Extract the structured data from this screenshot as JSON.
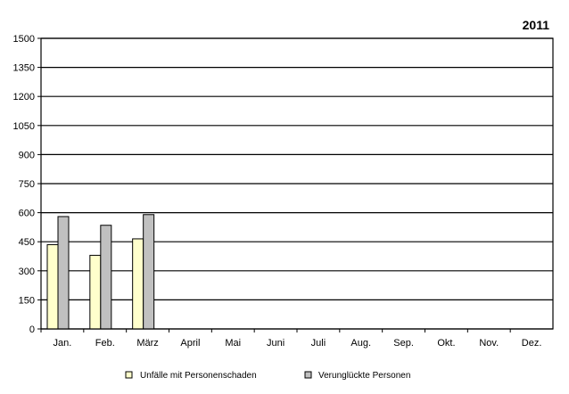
{
  "chart_data": {
    "type": "bar",
    "title": "2011",
    "categories": [
      "Jan.",
      "Feb.",
      "März",
      "April",
      "Mai",
      "Juni",
      "Juli",
      "Aug.",
      "Sep.",
      "Okt.",
      "Nov.",
      "Dez."
    ],
    "series": [
      {
        "name": "Unfälle mit Personenschaden",
        "color": "#FFFFCC",
        "values": [
          435,
          380,
          465,
          null,
          null,
          null,
          null,
          null,
          null,
          null,
          null,
          null
        ]
      },
      {
        "name": "Verunglückte Personen",
        "color": "#C0C0C0",
        "values": [
          580,
          535,
          590,
          null,
          null,
          null,
          null,
          null,
          null,
          null,
          null,
          null
        ]
      }
    ],
    "ylim": [
      0,
      1500
    ],
    "yticks": [
      0,
      150,
      300,
      450,
      600,
      750,
      900,
      1050,
      1200,
      1350,
      1500
    ],
    "grid": true,
    "legend_position": "bottom"
  }
}
